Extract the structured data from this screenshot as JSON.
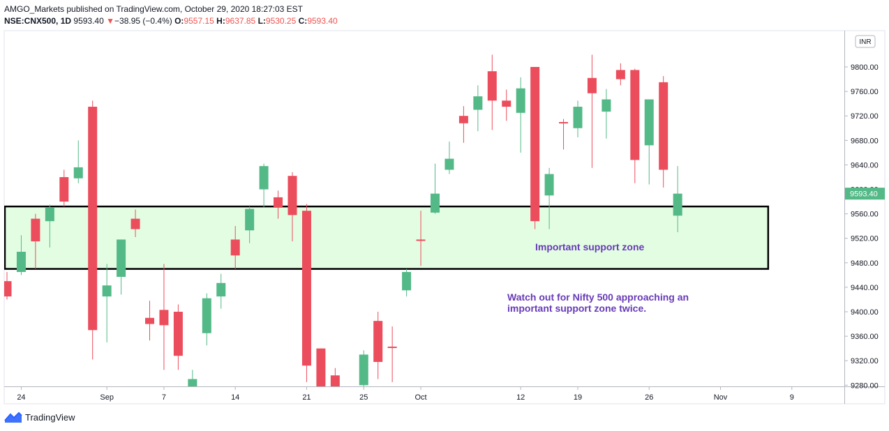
{
  "header": {
    "publisher_line": "AMGO_Markets published on TradingView.com, October 29, 2020 18:27:03 EST",
    "symbol": "NSE:CNX500, 1D",
    "last": "9593.40",
    "change_arrow": "▼",
    "change": "−38.95 (−0.4%)",
    "o_label": "O:",
    "o_value": "9557.15",
    "h_label": "H:",
    "h_value": "9637.85",
    "l_label": "L:",
    "l_value": "9530.25",
    "c_label": "C:",
    "c_value": "9593.40"
  },
  "footer": {
    "brand": "TradingView",
    "logo_icon": "tradingview-logo-icon"
  },
  "chart_data": {
    "type": "candlestick",
    "currency_badge": "INR",
    "price_tag": "9593.40",
    "y_range": [
      9270,
      9855
    ],
    "y_ticks": [
      9280,
      9320,
      9360,
      9400,
      9440,
      9480,
      9520,
      9560,
      9600,
      9640,
      9680,
      9720,
      9760,
      9800
    ],
    "y_tick_labels": [
      "9280.00",
      "9320.00",
      "9360.00",
      "9400.00",
      "9440.00",
      "9480.00",
      "9520.00",
      "9560.00",
      "9600.00",
      "9640.00",
      "9680.00",
      "9720.00",
      "9760.00",
      "9800.00"
    ],
    "x_ticks": [
      {
        "label": "24",
        "index": 1
      },
      {
        "label": "Sep",
        "index": 7
      },
      {
        "label": "7",
        "index": 11
      },
      {
        "label": "14",
        "index": 16
      },
      {
        "label": "21",
        "index": 21
      },
      {
        "label": "25",
        "index": 25
      },
      {
        "label": "Oct",
        "index": 29
      },
      {
        "label": "12",
        "index": 36
      },
      {
        "label": "19",
        "index": 40
      },
      {
        "label": "26",
        "index": 45
      },
      {
        "label": "Nov",
        "index": 50
      },
      {
        "label": "9",
        "index": 55
      }
    ],
    "candles": [
      {
        "o": 9450,
        "h": 9465,
        "l": 9420,
        "c": 9425
      },
      {
        "o": 9465,
        "h": 9525,
        "l": 9460,
        "c": 9498
      },
      {
        "o": 9552,
        "h": 9560,
        "l": 9470,
        "c": 9515
      },
      {
        "o": 9548,
        "h": 9575,
        "l": 9505,
        "c": 9570
      },
      {
        "o": 9620,
        "h": 9632,
        "l": 9572,
        "c": 9580
      },
      {
        "o": 9618,
        "h": 9680,
        "l": 9610,
        "c": 9636
      },
      {
        "o": 9735,
        "h": 9745,
        "l": 9322,
        "c": 9370
      },
      {
        "o": 9425,
        "h": 9478,
        "l": 9350,
        "c": 9443
      },
      {
        "o": 9457,
        "h": 9518,
        "l": 9428,
        "c": 9518
      },
      {
        "o": 9552,
        "h": 9567,
        "l": 9522,
        "c": 9535
      },
      {
        "o": 9390,
        "h": 9418,
        "l": 9353,
        "c": 9380
      },
      {
        "o": 9403,
        "h": 9478,
        "l": 9305,
        "c": 9378
      },
      {
        "o": 9400,
        "h": 9412,
        "l": 9305,
        "c": 9328
      },
      {
        "o": 9270,
        "h": 9305,
        "l": 9270,
        "c": 9290
      },
      {
        "o": 9365,
        "h": 9430,
        "l": 9345,
        "c": 9422
      },
      {
        "o": 9425,
        "h": 9462,
        "l": 9405,
        "c": 9447
      },
      {
        "o": 9518,
        "h": 9540,
        "l": 9470,
        "c": 9492
      },
      {
        "o": 9533,
        "h": 9572,
        "l": 9512,
        "c": 9568
      },
      {
        "o": 9600,
        "h": 9642,
        "l": 9570,
        "c": 9638
      },
      {
        "o": 9587,
        "h": 9598,
        "l": 9552,
        "c": 9570
      },
      {
        "o": 9622,
        "h": 9628,
        "l": 9515,
        "c": 9558
      },
      {
        "o": 9565,
        "h": 9576,
        "l": 9285,
        "c": 9312
      },
      {
        "o": 9340,
        "h": 9340,
        "l": 9255,
        "c": 9260
      },
      {
        "o": 9296,
        "h": 9308,
        "l": 9250,
        "c": 9255
      },
      {
        "o": 9260,
        "h": 9270,
        "l": 9240,
        "c": 9245
      },
      {
        "o": 9280,
        "h": 9337,
        "l": 9270,
        "c": 9330
      },
      {
        "o": 9385,
        "h": 9400,
        "l": 9290,
        "c": 9318
      },
      {
        "o": 9343,
        "h": 9376,
        "l": 9285,
        "c": 9342
      },
      {
        "o": 9435,
        "h": 9470,
        "l": 9425,
        "c": 9465
      },
      {
        "o": 9518,
        "h": 9565,
        "l": 9475,
        "c": 9516
      },
      {
        "o": 9562,
        "h": 9642,
        "l": 9560,
        "c": 9593
      },
      {
        "o": 9632,
        "h": 9678,
        "l": 9625,
        "c": 9650
      },
      {
        "o": 9720,
        "h": 9736,
        "l": 9676,
        "c": 9708
      },
      {
        "o": 9730,
        "h": 9770,
        "l": 9695,
        "c": 9752
      },
      {
        "o": 9793,
        "h": 9820,
        "l": 9697,
        "c": 9745
      },
      {
        "o": 9745,
        "h": 9763,
        "l": 9712,
        "c": 9735
      },
      {
        "o": 9725,
        "h": 9783,
        "l": 9660,
        "c": 9765
      },
      {
        "o": 9800,
        "h": 9800,
        "l": 9535,
        "c": 9548
      },
      {
        "o": 9590,
        "h": 9635,
        "l": 9535,
        "c": 9625
      },
      {
        "o": 9710,
        "h": 9715,
        "l": 9665,
        "c": 9708
      },
      {
        "o": 9700,
        "h": 9745,
        "l": 9685,
        "c": 9735
      },
      {
        "o": 9782,
        "h": 9820,
        "l": 9635,
        "c": 9757
      },
      {
        "o": 9727,
        "h": 9764,
        "l": 9683,
        "c": 9747
      },
      {
        "o": 9795,
        "h": 9806,
        "l": 9770,
        "c": 9780
      },
      {
        "o": 9795,
        "h": 9797,
        "l": 9610,
        "c": 9648
      },
      {
        "o": 9672,
        "h": 9747,
        "l": 9608,
        "c": 9747
      },
      {
        "o": 9775,
        "h": 9785,
        "l": 9603,
        "c": 9632
      },
      {
        "o": 9557,
        "h": 9638,
        "l": 9530,
        "c": 9593
      }
    ],
    "zone": {
      "label": "Important support zone",
      "from_index": 0,
      "to_index": 53,
      "low": 9470,
      "high": 9572
    },
    "annotation_line1": "Watch out for Nifty 500 approaching an",
    "annotation_line2": "important support zone twice.",
    "colors": {
      "up": "#53b987",
      "down": "#eb4d5c",
      "zone_fill": "#e3fde3",
      "zone_border": "#000000",
      "annotation": "#673ab7",
      "price_tag_bg": "#26a69a",
      "axis": "#131722"
    }
  }
}
